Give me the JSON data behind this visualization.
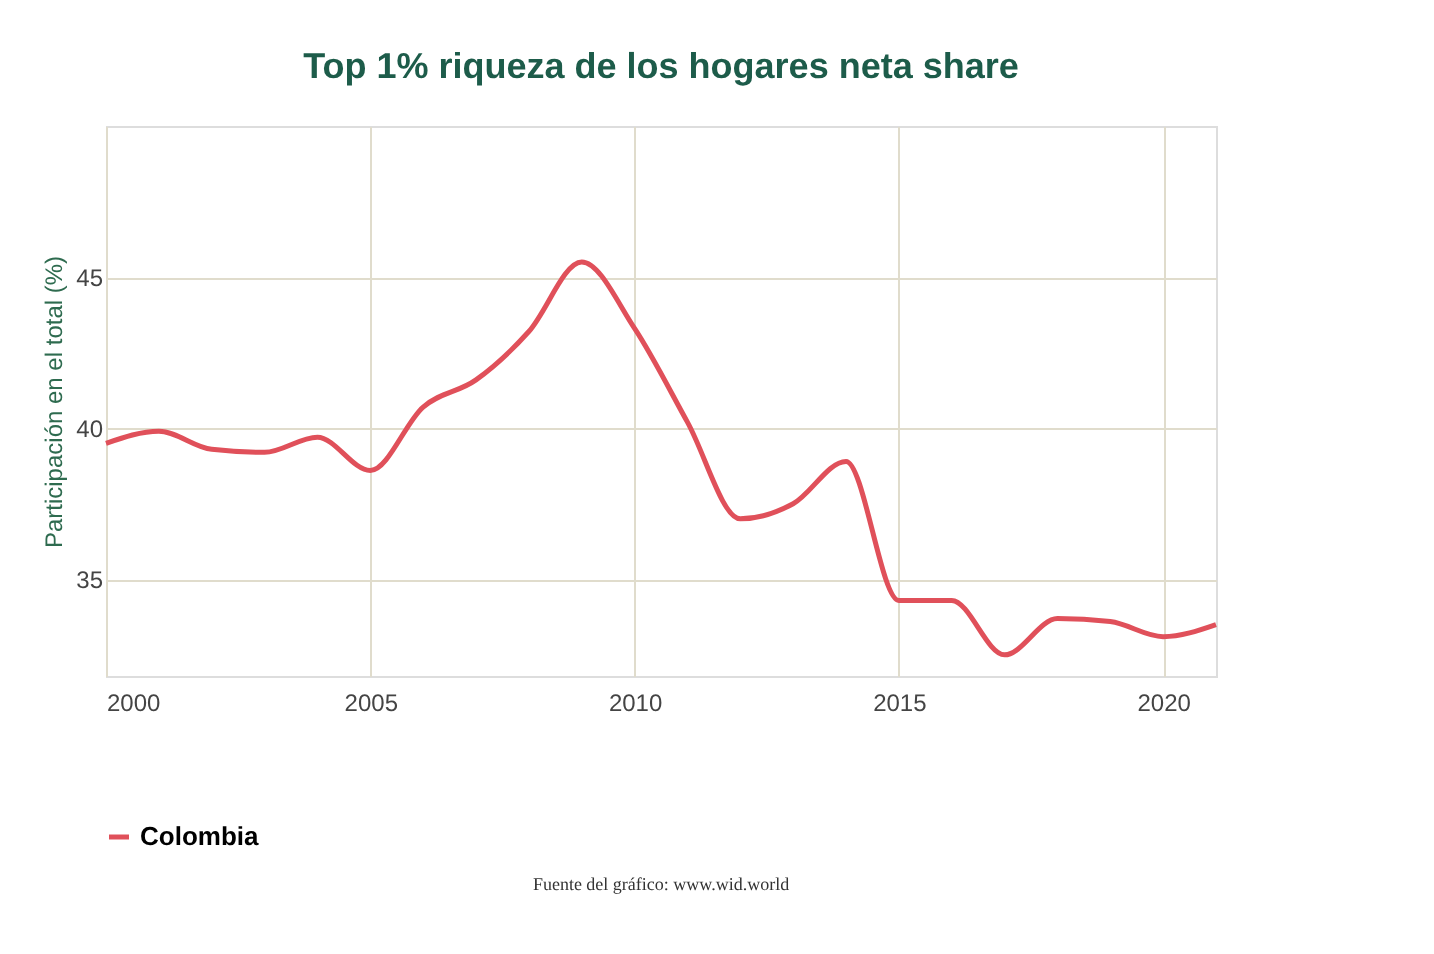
{
  "chart_data": {
    "type": "line",
    "title": "Top 1% riqueza de los hogares neta share",
    "ylabel": "Participación en el total (%)",
    "x": [
      2000,
      2001,
      2002,
      2003,
      2004,
      2005,
      2006,
      2007,
      2008,
      2009,
      2010,
      2011,
      2012,
      2013,
      2014,
      2015,
      2016,
      2017,
      2018,
      2019,
      2020,
      2021
    ],
    "series": [
      {
        "name": "Colombia",
        "color": "#e0505a",
        "values": [
          39.5,
          39.9,
          39.3,
          39.2,
          39.7,
          38.6,
          40.7,
          41.6,
          43.2,
          45.5,
          43.3,
          40.2,
          37.0,
          37.5,
          38.9,
          34.3,
          34.3,
          32.5,
          33.7,
          33.6,
          33.1,
          33.5
        ]
      }
    ],
    "xlim": [
      2000,
      2021
    ],
    "xticks": [
      2000,
      2005,
      2010,
      2015,
      2020
    ],
    "ylim": [
      31.8,
      50
    ],
    "yticks": [
      35,
      40,
      45
    ],
    "grid": true,
    "legend": "bottom",
    "marker": "none",
    "line_style": "solid",
    "annotations": [
      "Fuente del gráfico: www.wid.world"
    ]
  }
}
